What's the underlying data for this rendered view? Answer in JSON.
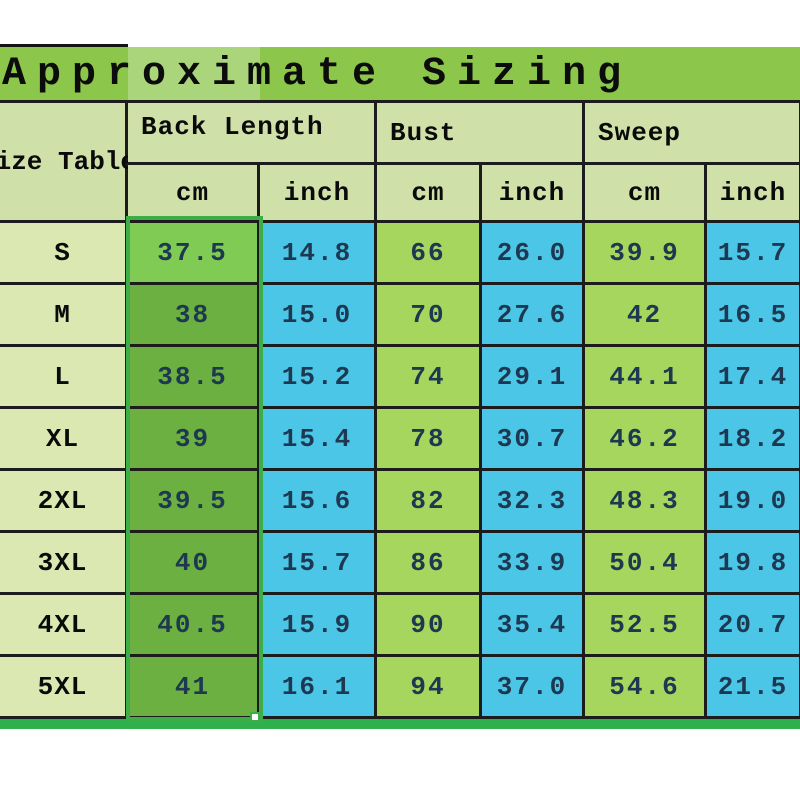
{
  "title": "Approximate Sizing",
  "table": {
    "corner_label": "Size Table",
    "groups": {
      "back_length": "Back Length",
      "bust": "Bust",
      "sweep": "Sweep"
    },
    "units": {
      "cm": "cm",
      "inch": "inch"
    },
    "rows": [
      {
        "size": "S",
        "back_cm": "37.5",
        "back_inch": "14.8",
        "bust_cm": "66",
        "bust_inch": "26.0",
        "sweep_cm": "39.9",
        "sweep_inch": "15.7"
      },
      {
        "size": "M",
        "back_cm": "38",
        "back_inch": "15.0",
        "bust_cm": "70",
        "bust_inch": "27.6",
        "sweep_cm": "42",
        "sweep_inch": "16.5"
      },
      {
        "size": "L",
        "back_cm": "38.5",
        "back_inch": "15.2",
        "bust_cm": "74",
        "bust_inch": "29.1",
        "sweep_cm": "44.1",
        "sweep_inch": "17.4"
      },
      {
        "size": "XL",
        "back_cm": "39",
        "back_inch": "15.4",
        "bust_cm": "78",
        "bust_inch": "30.7",
        "sweep_cm": "46.2",
        "sweep_inch": "18.2"
      },
      {
        "size": "2XL",
        "back_cm": "39.5",
        "back_inch": "15.6",
        "bust_cm": "82",
        "bust_inch": "32.3",
        "sweep_cm": "48.3",
        "sweep_inch": "19.0"
      },
      {
        "size": "3XL",
        "back_cm": "40",
        "back_inch": "15.7",
        "bust_cm": "86",
        "bust_inch": "33.9",
        "sweep_cm": "50.4",
        "sweep_inch": "19.8"
      },
      {
        "size": "4XL",
        "back_cm": "40.5",
        "back_inch": "15.9",
        "bust_cm": "90",
        "bust_inch": "35.4",
        "sweep_cm": "52.5",
        "sweep_inch": "20.7"
      },
      {
        "size": "5XL",
        "back_cm": "41",
        "back_inch": "16.1",
        "bust_cm": "94",
        "bust_inch": "37.0",
        "sweep_cm": "54.6",
        "sweep_inch": "21.5"
      }
    ]
  },
  "colors": {
    "title-bg": "#8cc64a",
    "header-bg": "#cfe0a8",
    "label-bg": "#dbe8b2",
    "cm-bg": "#a6d65e",
    "inch-bg": "#4cc6e6",
    "back-cm-bg": "#6cb041",
    "back-cm-active-bg": "#80cb53",
    "sel-border": "#3ead48",
    "strip-bg": "#2fb04c",
    "line": "#1c1c1c",
    "number-text": "#1d3850"
  }
}
